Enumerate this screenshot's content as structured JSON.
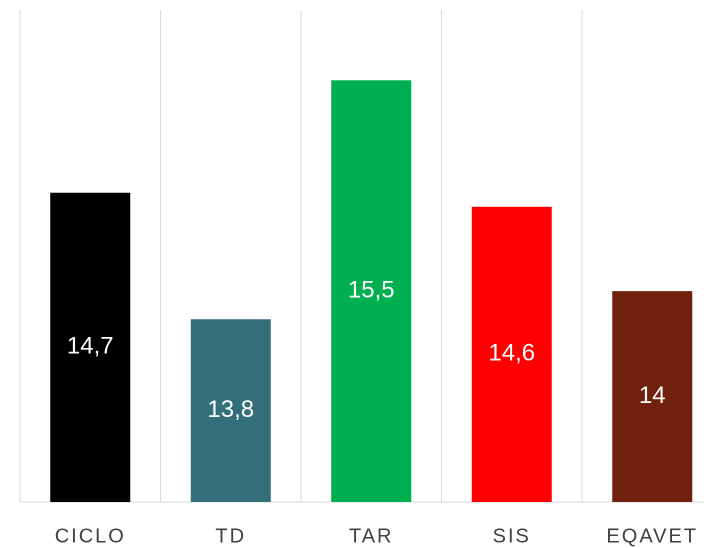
{
  "chart_data": {
    "type": "bar",
    "categories": [
      "CICLO",
      "TD",
      "TAR",
      "SIS",
      "EQAVET"
    ],
    "values": [
      14.7,
      13.8,
      15.5,
      14.6,
      14
    ],
    "value_labels": [
      "14,7",
      "13,8",
      "15,5",
      "14,6",
      "14"
    ],
    "colors": [
      "#000000",
      "#336e7b",
      "#00b050",
      "#ff0000",
      "#70200c"
    ],
    "ylim": [
      12.5,
      16
    ]
  }
}
